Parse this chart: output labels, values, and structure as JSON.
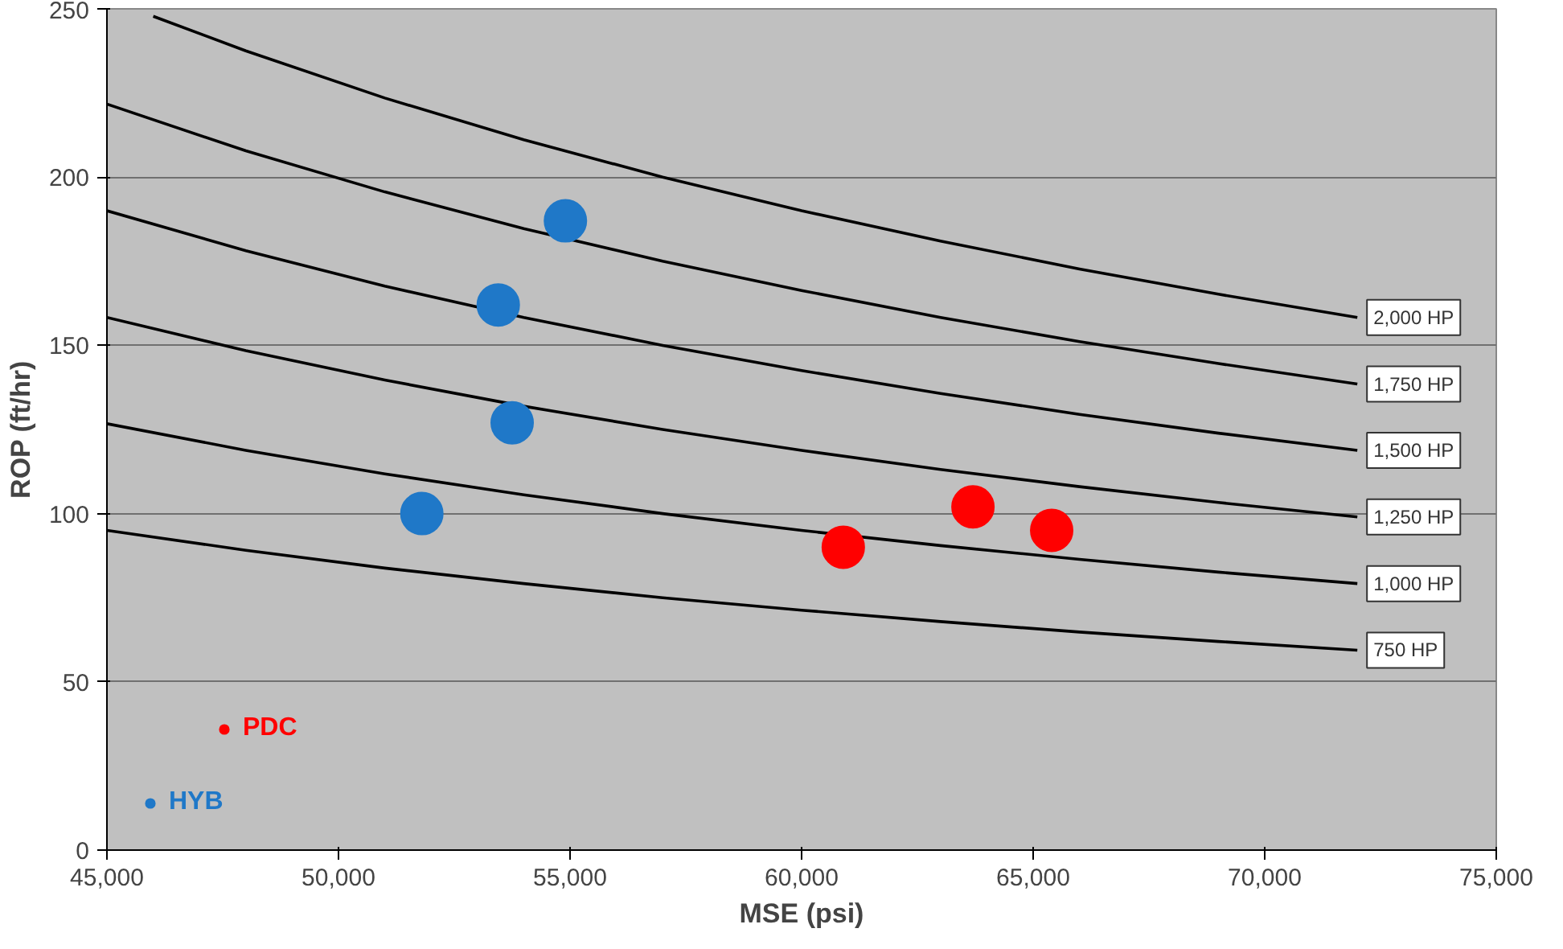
{
  "chart_data": {
    "type": "scatter",
    "xlabel": "MSE (psi)",
    "ylabel": "ROP (ft/hr)",
    "xlim": [
      45000,
      75000
    ],
    "xticks": [
      {
        "value": 45000,
        "label": "45,000"
      },
      {
        "value": 50000,
        "label": "50,000"
      },
      {
        "value": 55000,
        "label": "55,000"
      },
      {
        "value": 60000,
        "label": "60,000"
      },
      {
        "value": 65000,
        "label": "65,000"
      },
      {
        "value": 70000,
        "label": "70,000"
      },
      {
        "value": 75000,
        "label": "75,000"
      }
    ],
    "ylim": [
      0,
      250
    ],
    "yticks": [
      0,
      50,
      100,
      150,
      200,
      250
    ],
    "grid": "y",
    "legend": "bottom left",
    "series": [
      {
        "type": "line",
        "name": "750 HP",
        "color": "#000000",
        "x": [
          45000,
          48000,
          51000,
          54000,
          57000,
          60000,
          63000,
          66000,
          69000,
          72000
        ],
        "values": [
          95.0,
          89.1,
          83.8,
          79.2,
          75.0,
          71.3,
          67.9,
          64.8,
          62.0,
          59.4
        ]
      },
      {
        "type": "line",
        "name": "1,000 HP",
        "color": "#000000",
        "x": [
          45000,
          48000,
          51000,
          54000,
          57000,
          60000,
          63000,
          66000,
          69000,
          72000
        ],
        "values": [
          126.7,
          118.8,
          111.8,
          105.6,
          100.0,
          95.0,
          90.5,
          86.4,
          82.6,
          79.2
        ]
      },
      {
        "type": "line",
        "name": "1,250 HP",
        "color": "#000000",
        "x": [
          45000,
          48000,
          51000,
          54000,
          57000,
          60000,
          63000,
          66000,
          69000,
          72000
        ],
        "values": [
          158.3,
          148.4,
          139.7,
          131.9,
          125.0,
          118.8,
          113.1,
          108.0,
          103.3,
          99.0
        ]
      },
      {
        "type": "line",
        "name": "1,500 HP",
        "color": "#000000",
        "x": [
          45000,
          48000,
          51000,
          54000,
          57000,
          60000,
          63000,
          66000,
          69000,
          72000
        ],
        "values": [
          190.0,
          178.1,
          167.6,
          158.3,
          150.0,
          142.5,
          135.7,
          129.5,
          123.9,
          118.8
        ]
      },
      {
        "type": "line",
        "name": "1,750 HP",
        "color": "#000000",
        "x": [
          45000,
          48000,
          51000,
          54000,
          57000,
          60000,
          63000,
          66000,
          69000,
          72000
        ],
        "values": [
          221.7,
          207.8,
          195.6,
          184.7,
          175.0,
          166.3,
          158.3,
          151.1,
          144.6,
          138.5
        ]
      },
      {
        "type": "line",
        "name": "2,000 HP",
        "color": "#000000",
        "x": [
          46000,
          48000,
          51000,
          54000,
          57000,
          60000,
          63000,
          66000,
          69000,
          72000
        ],
        "values": [
          247.8,
          237.5,
          223.5,
          211.1,
          200.0,
          190.0,
          181.0,
          172.7,
          165.2,
          158.3
        ]
      },
      {
        "marker": "circle",
        "name": "PDC",
        "color": "#ff0000",
        "x": [
          60900,
          63700,
          65400
        ],
        "values": [
          90,
          102,
          95
        ]
      },
      {
        "marker": "circle",
        "name": "HYB",
        "color": "#1f78c8",
        "x": [
          51800,
          53450,
          53750,
          54900
        ],
        "values": [
          100,
          162,
          127,
          187
        ]
      }
    ]
  }
}
